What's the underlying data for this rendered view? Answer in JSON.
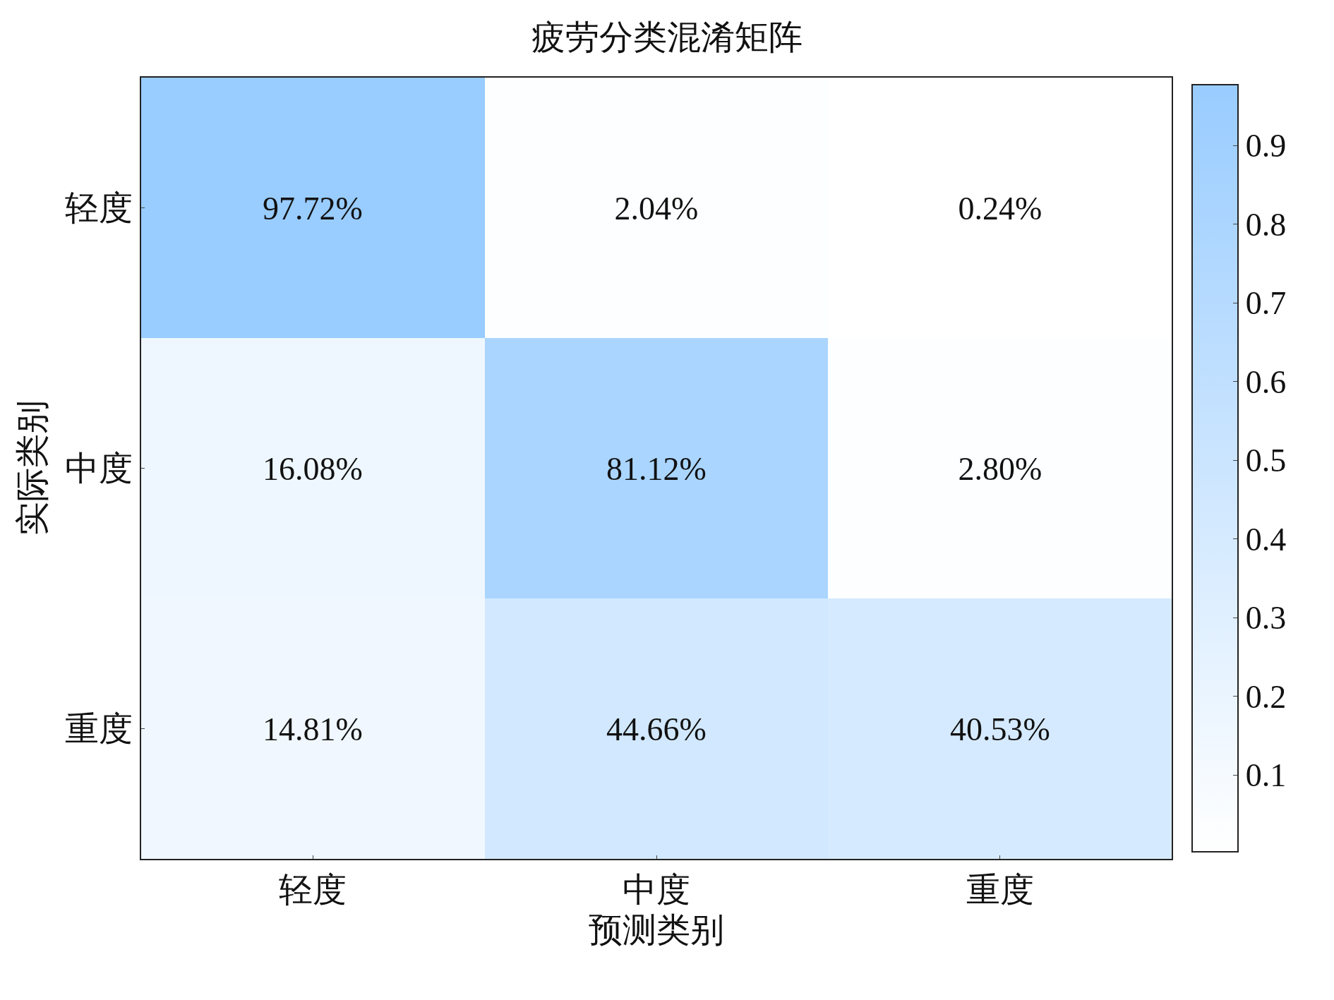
{
  "chart_data": {
    "type": "heatmap",
    "title": "疲劳分类混淆矩阵",
    "xlabel": "预测类别",
    "ylabel": "实际类别",
    "categories": [
      "轻度",
      "中度",
      "重度"
    ],
    "y_categories": [
      "轻度",
      "中度",
      "重度"
    ],
    "cells": [
      [
        0.9772,
        0.0204,
        0.0024
      ],
      [
        0.1608,
        0.8112,
        0.028
      ],
      [
        0.1481,
        0.4466,
        0.4053
      ]
    ],
    "cell_labels": [
      [
        "97.72%",
        "2.04%",
        "0.24%"
      ],
      [
        "16.08%",
        "81.12%",
        "2.80%"
      ],
      [
        "14.81%",
        "44.66%",
        "40.53%"
      ]
    ],
    "clim": [
      0.0024,
      0.9772
    ],
    "cticks": [
      0.1,
      0.2,
      0.3,
      0.4,
      0.5,
      0.6,
      0.7,
      0.8,
      0.9
    ]
  }
}
